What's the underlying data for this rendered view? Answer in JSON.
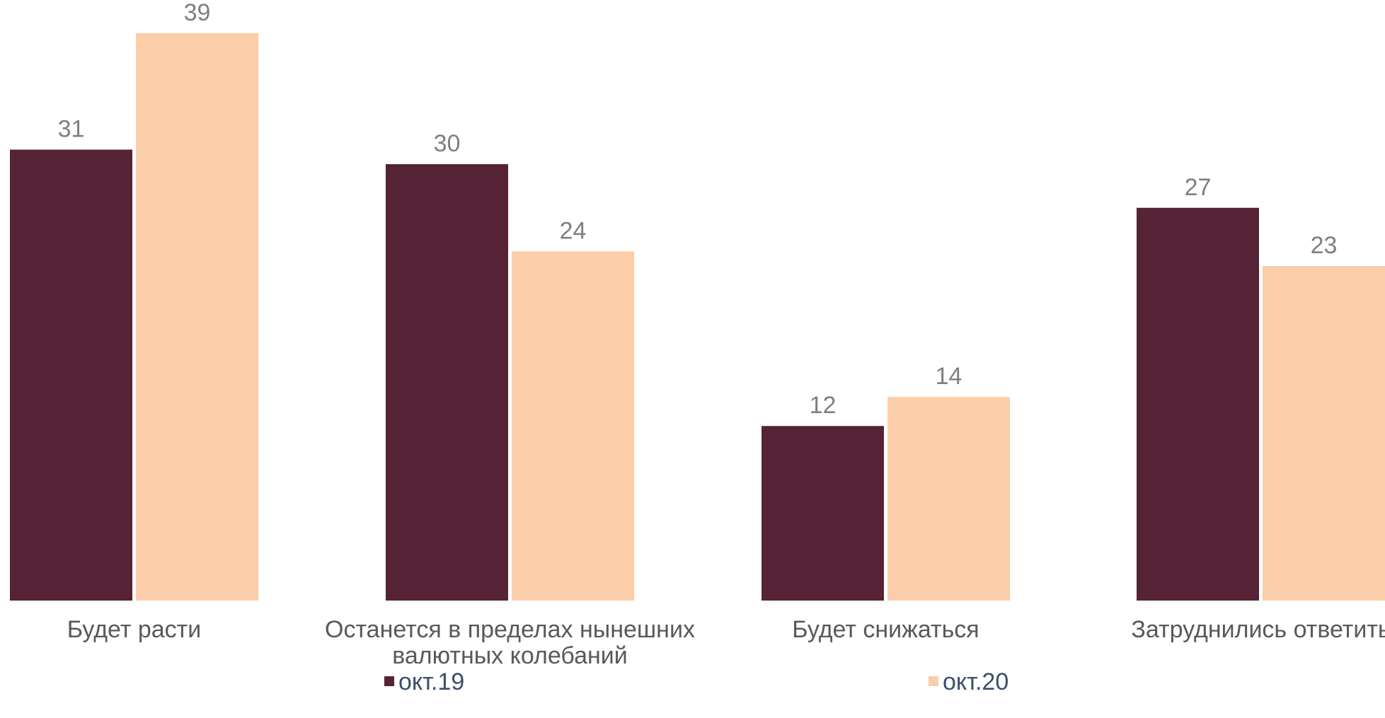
{
  "chart_data": {
    "type": "bar",
    "categories": [
      [
        "Будет расти"
      ],
      [
        "Останется в пределах нынешних",
        "валютных колебаний"
      ],
      [
        "Будет снижаться"
      ],
      [
        "Затруднились ответить"
      ]
    ],
    "series": [
      {
        "name": "окт.19",
        "values": [
          31,
          30,
          12,
          27
        ],
        "color": "#552335"
      },
      {
        "name": "окт.20",
        "values": [
          39,
          24,
          14,
          23
        ],
        "color": "#fbcda9"
      }
    ],
    "ylim": [
      0,
      39
    ],
    "grid": false,
    "legend_position": "bottom"
  }
}
